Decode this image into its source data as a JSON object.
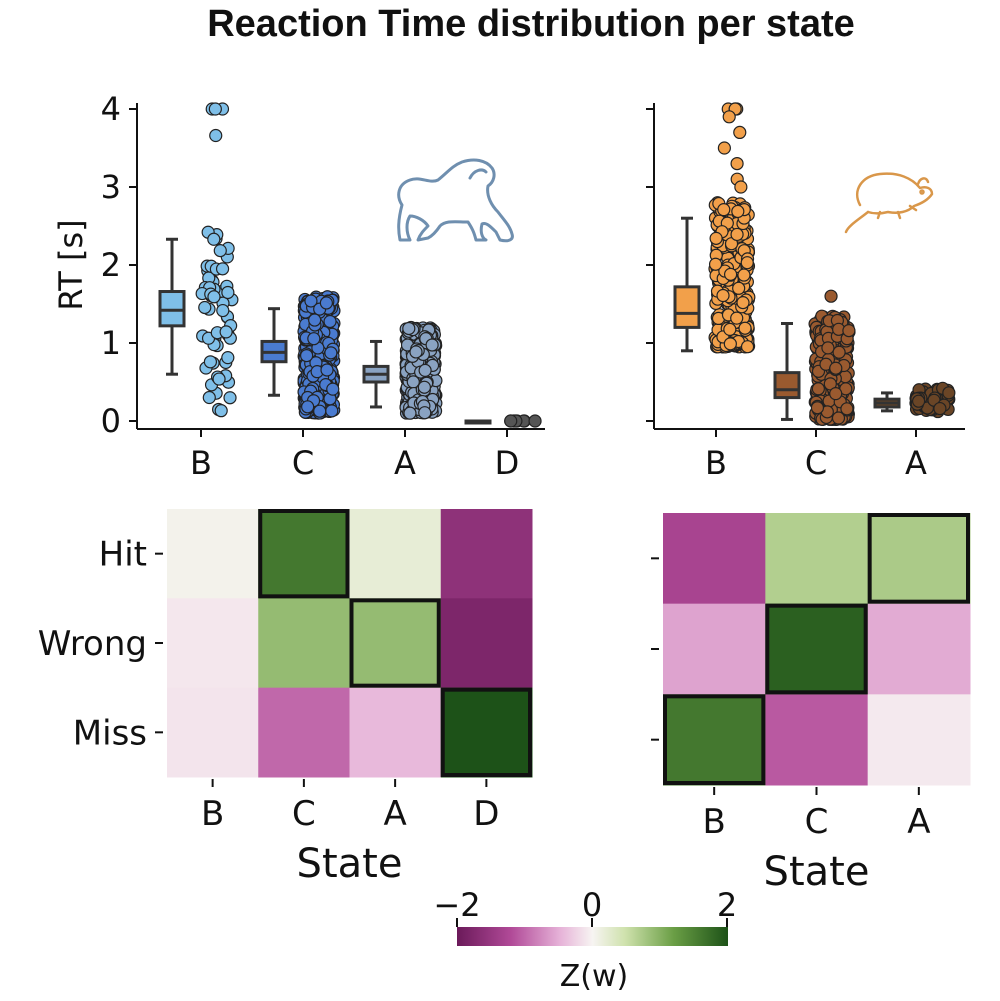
{
  "title": "Reaction Time distribution per state",
  "colors": {
    "monkey_B": "#7fbfe8",
    "monkey_C": "#4a7bd0",
    "monkey_A": "#8aa3c2",
    "monkey_D": "#555555",
    "rat_B": "#f2a04a",
    "rat_C": "#9a5a2f",
    "rat_A": "#6a4526",
    "monkey_icon": "#6f8faf",
    "rat_icon": "#d9974a"
  },
  "chart_data": [
    {
      "id": "monkey_rt",
      "type": "box",
      "title": "",
      "ylabel": "RT [s]",
      "xlabel": "",
      "ylim": [
        0,
        4
      ],
      "yticks": [
        "0",
        "1",
        "2",
        "3",
        "4"
      ],
      "categories": [
        "B",
        "C",
        "A",
        "D"
      ],
      "boxes": [
        {
          "cat": "B",
          "q1": 1.22,
          "median": 1.42,
          "q3": 1.66,
          "whisker_low": 0.6,
          "whisker_high": 2.33,
          "scatter_range": [
            0.1,
            2.4
          ],
          "outliers": [
            4.0,
            4.0,
            4.0,
            3.66,
            2.42,
            2.33
          ]
        },
        {
          "cat": "C",
          "q1": 0.76,
          "median": 0.88,
          "q3": 1.02,
          "whisker_low": 0.33,
          "whisker_high": 1.44,
          "scatter_range": [
            0.1,
            1.6
          ],
          "outliers": []
        },
        {
          "cat": "A",
          "q1": 0.5,
          "median": 0.6,
          "q3": 0.7,
          "whisker_low": 0.18,
          "whisker_high": 1.02,
          "scatter_range": [
            0.1,
            1.2
          ],
          "outliers": []
        },
        {
          "cat": "D",
          "q1": 0.0,
          "median": 0.0,
          "q3": 0.0,
          "whisker_low": 0.0,
          "whisker_high": 0.0,
          "scatter_range": [
            0.0,
            0.0
          ],
          "outliers": []
        }
      ]
    },
    {
      "id": "rat_rt",
      "type": "box",
      "title": "",
      "ylabel": "",
      "xlabel": "",
      "ylim": [
        0,
        4
      ],
      "categories": [
        "B",
        "C",
        "A"
      ],
      "boxes": [
        {
          "cat": "B",
          "q1": 1.2,
          "median": 1.38,
          "q3": 1.72,
          "whisker_low": 0.9,
          "whisker_high": 2.6,
          "scatter_range": [
            0.95,
            2.8
          ],
          "outliers": [
            4.0,
            4.0,
            4.0,
            4.0,
            3.9,
            3.7,
            3.5,
            3.3,
            3.1,
            3.0
          ]
        },
        {
          "cat": "C",
          "q1": 0.3,
          "median": 0.4,
          "q3": 0.62,
          "whisker_low": 0.02,
          "whisker_high": 1.25,
          "scatter_range": [
            0.02,
            1.35
          ],
          "outliers": [
            1.6
          ]
        },
        {
          "cat": "A",
          "q1": 0.18,
          "median": 0.23,
          "q3": 0.28,
          "whisker_low": 0.13,
          "whisker_high": 0.36,
          "scatter_range": [
            0.12,
            0.42
          ],
          "outliers": []
        }
      ]
    },
    {
      "id": "monkey_heatmap",
      "type": "heatmap",
      "xlabel": "State",
      "xticks": [
        "B",
        "C",
        "A",
        "D"
      ],
      "yticks": [
        "Hit",
        "Wrong",
        "Miss"
      ],
      "values": [
        [
          0.05,
          1.6,
          0.2,
          -1.6
        ],
        [
          -0.1,
          0.9,
          0.9,
          -1.8
        ],
        [
          -0.12,
          -1.0,
          -0.45,
          2.0
        ]
      ],
      "highlighted": [
        [
          0,
          1
        ],
        [
          1,
          2
        ],
        [
          2,
          3
        ]
      ]
    },
    {
      "id": "rat_heatmap",
      "type": "heatmap",
      "xlabel": "State",
      "xticks": [
        "B",
        "C",
        "A"
      ],
      "yticks": [
        "",
        "",
        ""
      ],
      "values": [
        [
          -1.3,
          0.7,
          0.75
        ],
        [
          -0.6,
          1.85,
          -0.55
        ],
        [
          1.6,
          -1.1,
          -0.08
        ]
      ],
      "highlighted": [
        [
          0,
          2
        ],
        [
          1,
          1
        ],
        [
          2,
          0
        ]
      ]
    },
    {
      "id": "colorbar",
      "type": "colorbar",
      "label": "Z(w)",
      "range": [
        -2,
        2
      ],
      "ticks": [
        "−2",
        "0",
        "2"
      ]
    }
  ]
}
